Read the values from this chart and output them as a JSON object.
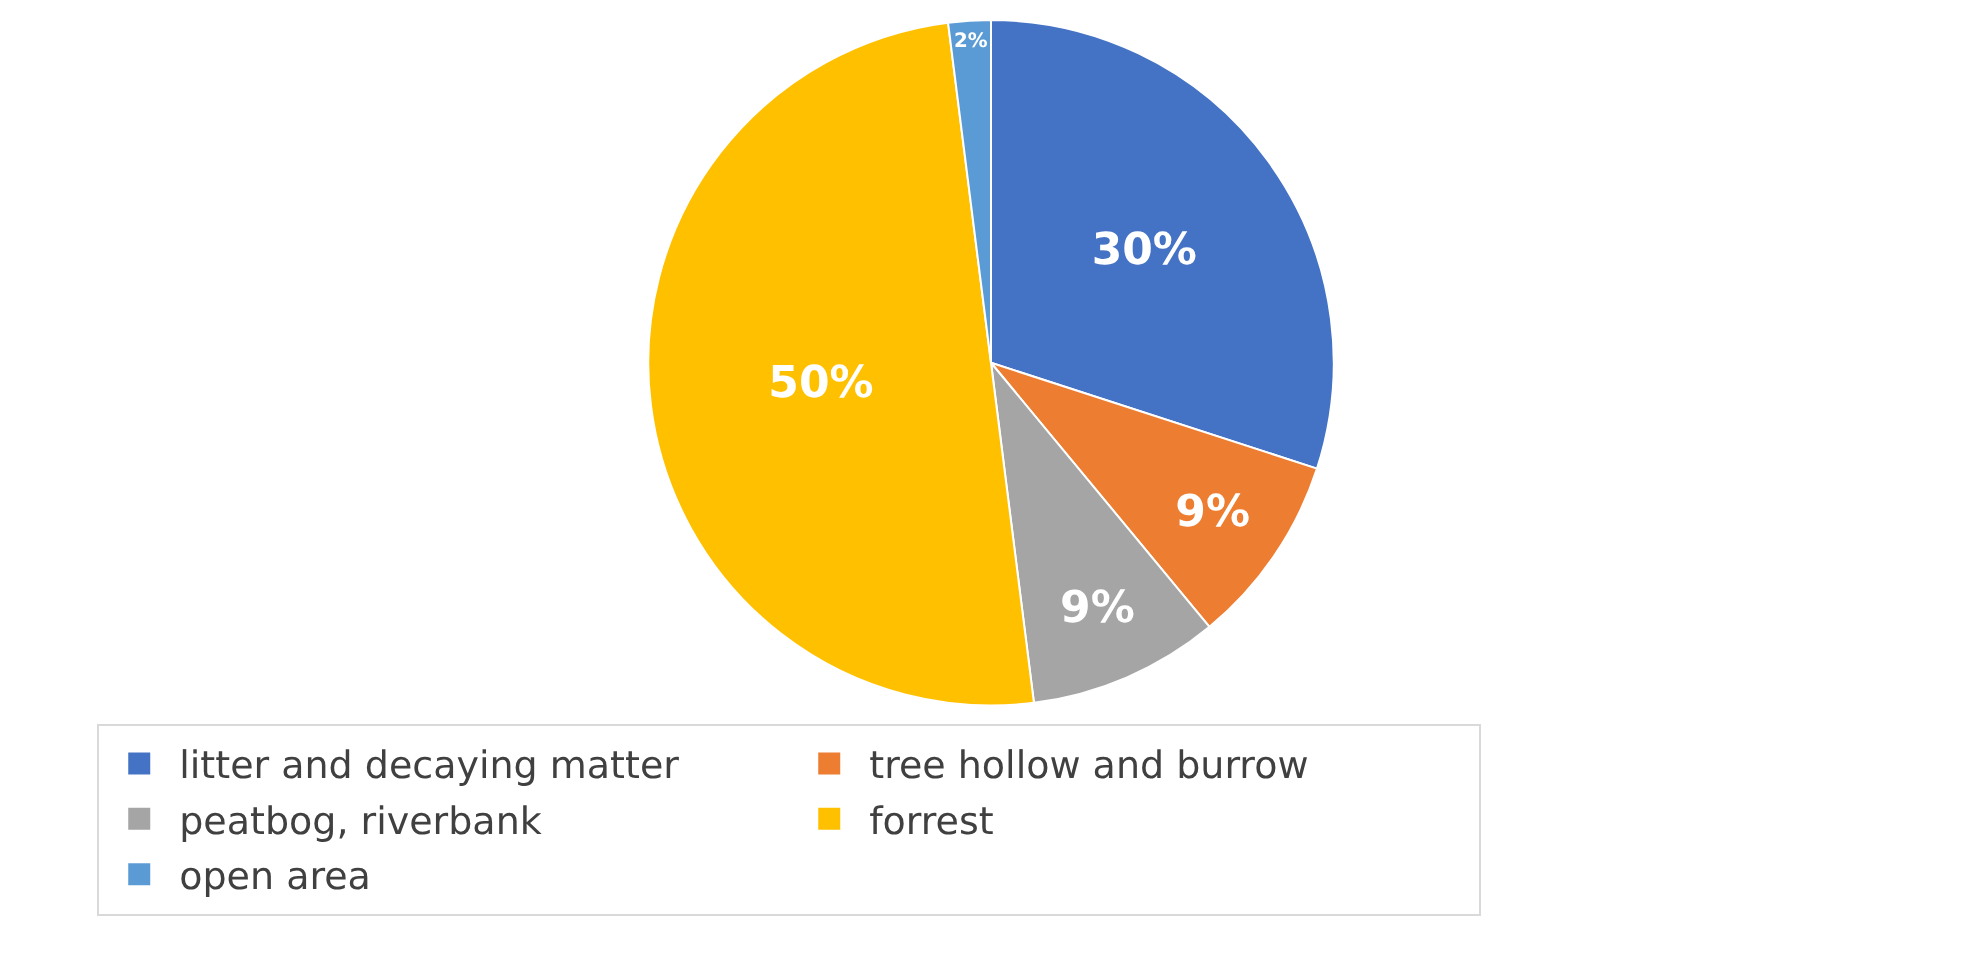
{
  "chart_data": {
    "type": "pie",
    "categories": [
      "litter and decaying matter",
      "tree hollow and burrow",
      "peatbog, riverbank",
      "forrest",
      "open area"
    ],
    "values": [
      30,
      9,
      9,
      50,
      2
    ],
    "value_labels": [
      "30%",
      "9%",
      "9%",
      "50%",
      "2%"
    ],
    "colors": [
      "#4472c4",
      "#ed7d31",
      "#a5a5a5",
      "#ffc000",
      "#5b9bd5"
    ],
    "legend": "bottom"
  }
}
